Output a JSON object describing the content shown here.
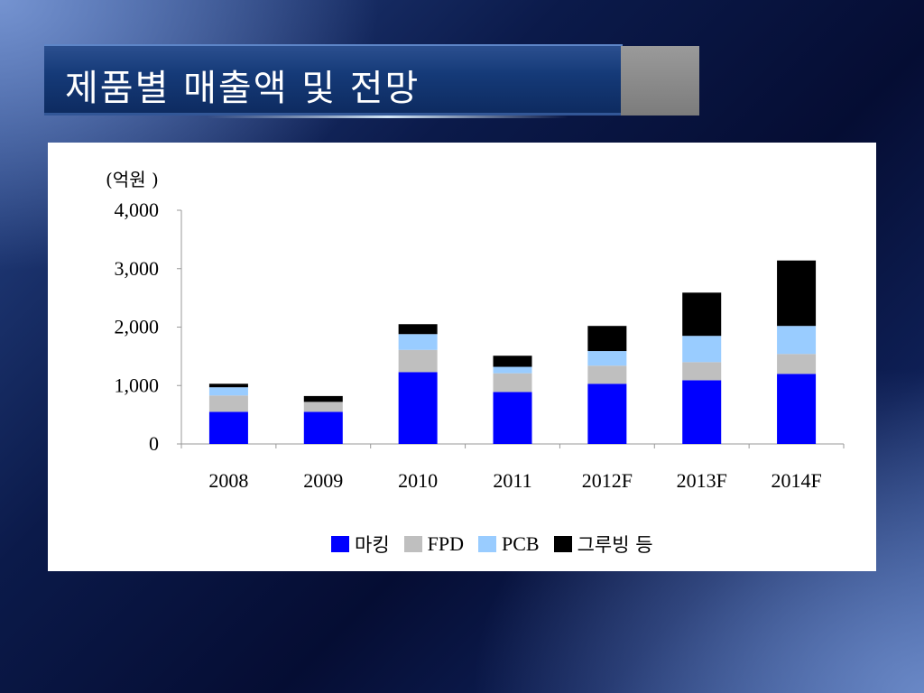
{
  "slide": {
    "title": "제품별 매출액 및 전망"
  },
  "colors": {
    "marking": "#0000ff",
    "fpd": "#bfbfbf",
    "pcb": "#99ccff",
    "grooving": "#000000"
  },
  "chart_data": {
    "type": "bar",
    "stacked": true,
    "unit_label": "(억원 )",
    "categories": [
      "2008",
      "2009",
      "2010",
      "2011",
      "2012F",
      "2013F",
      "2014F"
    ],
    "y_ticks": [
      "0",
      "1,000",
      "2,000",
      "3,000",
      "4,000"
    ],
    "ylim": [
      0,
      4000
    ],
    "grid": false,
    "legend_position": "bottom",
    "series": [
      {
        "name": "마킹",
        "color": "#0000ff",
        "values": [
          550,
          550,
          1230,
          890,
          1030,
          1090,
          1200
        ]
      },
      {
        "name": "FPD",
        "color": "#bfbfbf",
        "values": [
          280,
          170,
          380,
          320,
          310,
          310,
          340
        ]
      },
      {
        "name": "PCB",
        "color": "#99ccff",
        "values": [
          140,
          0,
          270,
          110,
          250,
          450,
          480
        ]
      },
      {
        "name": "그루빙 등",
        "color": "#000000",
        "values": [
          60,
          100,
          170,
          190,
          430,
          740,
          1120
        ]
      }
    ]
  }
}
